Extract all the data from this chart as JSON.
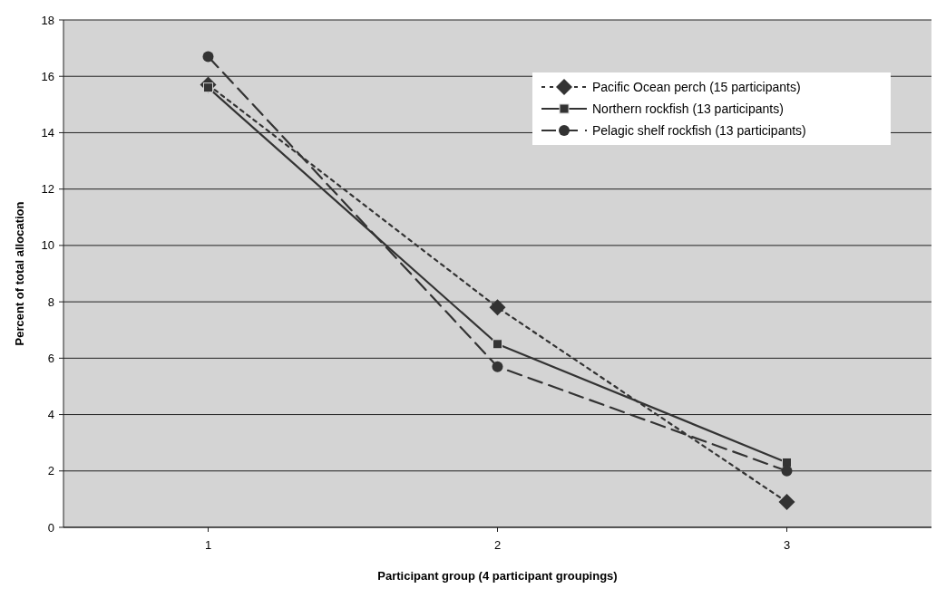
{
  "chart_data": {
    "type": "line",
    "xlabel": "Participant group (4 participant groupings)",
    "ylabel": "Percent of total allocation",
    "categories": [
      "1",
      "2",
      "3"
    ],
    "series": [
      {
        "name": "Pacific Ocean perch (15 participants)",
        "color": "#333333",
        "values": [
          15.7,
          7.8,
          0.9
        ],
        "marker": "diamond",
        "line_style": "dotted"
      },
      {
        "name": "Northern rockfish (13 participants)",
        "color": "#333333",
        "values": [
          15.6,
          6.5,
          2.3
        ],
        "marker": "square",
        "line_style": "solid"
      },
      {
        "name": "Pelagic shelf rockfish (13 participants)",
        "color": "#333333",
        "values": [
          16.7,
          5.7,
          2.0
        ],
        "marker": "circle",
        "line_style": "dashed"
      }
    ],
    "ylim": [
      0,
      18
    ],
    "yticks": [
      0,
      2,
      4,
      6,
      8,
      10,
      12,
      14,
      16,
      18
    ],
    "grid": "y",
    "legend": "top right"
  }
}
